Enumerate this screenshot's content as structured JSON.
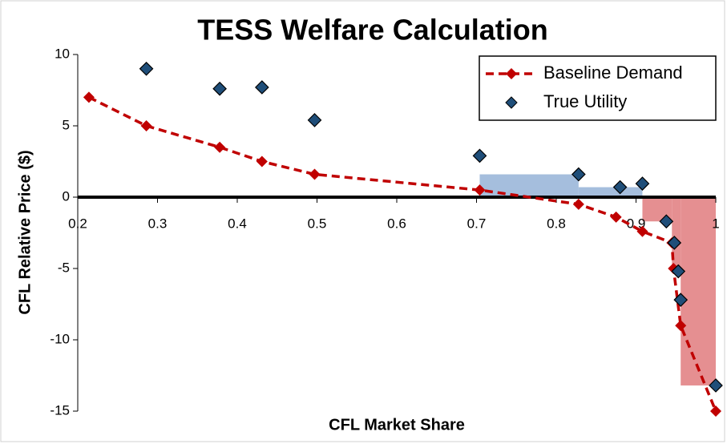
{
  "chart_data": {
    "type": "scatter",
    "title": "TESS Welfare Calculation",
    "x_label": "CFL Market Share",
    "y_label": "CFL Relative Price ($)",
    "xlim": [
      0.2,
      1
    ],
    "ylim": [
      -15,
      10
    ],
    "xticks": [
      0.2,
      0.3,
      0.4,
      0.5,
      0.6,
      0.7,
      0.8,
      0.9,
      1
    ],
    "yticks": [
      -15,
      -10,
      -5,
      0,
      5,
      10
    ],
    "legend": "upper right",
    "series": [
      {
        "name": "Baseline Demand",
        "color": "#c00000",
        "line": "dashed",
        "x": [
          0.214,
          0.286,
          0.378,
          0.431,
          0.497,
          0.704,
          0.828,
          0.875,
          0.908,
          0.945,
          0.947,
          0.956,
          1
        ],
        "values": [
          7.0,
          5.0,
          3.5,
          2.5,
          1.6,
          0.5,
          -0.5,
          -1.4,
          -2.4,
          -3.2,
          -5.0,
          -9.0,
          -15.0
        ]
      },
      {
        "name": "True Utility",
        "color": "#1f4e79",
        "line": "none",
        "x": [
          0.286,
          0.378,
          0.431,
          0.497,
          0.704,
          0.828,
          0.88,
          0.908,
          0.938,
          0.948,
          0.953,
          0.956,
          1
        ],
        "values": [
          9.0,
          7.6,
          7.7,
          5.4,
          2.9,
          1.6,
          0.7,
          0.95,
          -1.7,
          -3.2,
          -5.2,
          -7.2,
          -13.2
        ]
      }
    ],
    "areas": [
      {
        "color": "#95b3d7",
        "x0": 0.704,
        "x1": 0.828,
        "y": 1.6
      },
      {
        "color": "#95b3d7",
        "x0": 0.828,
        "x1": 0.908,
        "y": 0.7
      },
      {
        "color": "#e07b7e",
        "x0": 0.908,
        "x1": 0.945,
        "y": -1.7
      },
      {
        "color": "#e07b7e",
        "x0": 0.945,
        "x1": 0.956,
        "y": -5.2
      },
      {
        "color": "#e07b7e",
        "x0": 0.956,
        "x1": 1,
        "y": -13.2
      }
    ]
  }
}
